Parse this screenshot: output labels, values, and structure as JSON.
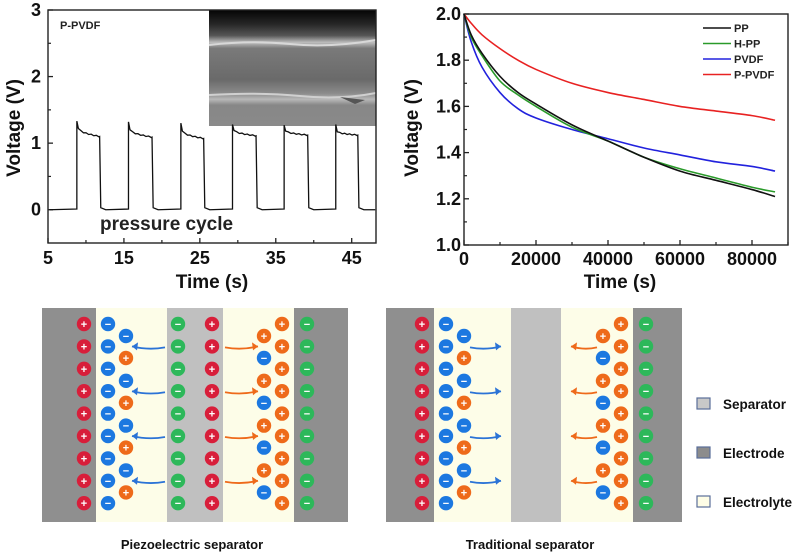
{
  "chart_data": [
    {
      "type": "line",
      "title": "",
      "annotation_label": "P-PVDF",
      "annotation_text": "pressure cycle",
      "inset": "SEM cross-section image",
      "xlabel": "Time (s)",
      "ylabel": "Voltage (V)",
      "xlim": [
        5,
        48.2
      ],
      "ylim": [
        -0.5,
        3
      ],
      "xticks": [
        5,
        15,
        25,
        35,
        45
      ],
      "yticks": [
        0,
        1,
        2,
        3
      ],
      "grid": false,
      "series": [
        {
          "name": "P-PVDF",
          "color": "#111111",
          "pulses": [
            {
              "rise": 8.8,
              "fall": 11.8,
              "peak": 1.33,
              "start": 1.22,
              "end": 1.1
            },
            {
              "rise": 15.6,
              "fall": 18.7,
              "peak": 1.32,
              "start": 1.2,
              "end": 1.09
            },
            {
              "rise": 22.5,
              "fall": 25.5,
              "peak": 1.3,
              "start": 1.18,
              "end": 1.07
            },
            {
              "rise": 29.3,
              "fall": 32.4,
              "peak": 1.28,
              "start": 1.19,
              "end": 1.11
            },
            {
              "rise": 36.1,
              "fall": 39.2,
              "peak": 1.27,
              "start": 1.18,
              "end": 1.12
            },
            {
              "rise": 42.9,
              "fall": 45.8,
              "peak": 1.28,
              "start": 1.17,
              "end": 1.12
            }
          ],
          "baseline": 0.0
        }
      ]
    },
    {
      "type": "line",
      "title": "",
      "xlabel": "Time (s)",
      "ylabel": "Voltage (V)",
      "xlim": [
        0,
        90000
      ],
      "ylim": [
        1.0,
        2.0
      ],
      "xticks": [
        0,
        20000,
        40000,
        60000,
        80000
      ],
      "yticks": [
        1.0,
        1.2,
        1.4,
        1.6,
        1.8,
        2.0
      ],
      "ytick_labels": [
        "1.0",
        "1.2",
        "1.4",
        "1.6",
        "1.8",
        "2.0"
      ],
      "grid": false,
      "legend_position": "top-right",
      "x": [
        0,
        2000,
        5000,
        10000,
        15000,
        20000,
        30000,
        40000,
        50000,
        60000,
        70000,
        80000,
        86400
      ],
      "series": [
        {
          "name": "PP",
          "color": "#111111",
          "values": [
            2.0,
            1.91,
            1.83,
            1.73,
            1.66,
            1.61,
            1.52,
            1.45,
            1.38,
            1.32,
            1.28,
            1.24,
            1.21
          ]
        },
        {
          "name": "H-PP",
          "color": "#2a9a2a",
          "values": [
            2.0,
            1.9,
            1.82,
            1.71,
            1.65,
            1.6,
            1.51,
            1.45,
            1.38,
            1.33,
            1.29,
            1.25,
            1.23
          ]
        },
        {
          "name": "PVDF",
          "color": "#2222dd",
          "values": [
            2.0,
            1.88,
            1.77,
            1.66,
            1.59,
            1.55,
            1.5,
            1.46,
            1.42,
            1.39,
            1.36,
            1.34,
            1.32
          ]
        },
        {
          "name": "P-PVDF",
          "color": "#e82222",
          "values": [
            2.0,
            1.96,
            1.91,
            1.85,
            1.8,
            1.76,
            1.7,
            1.66,
            1.63,
            1.6,
            1.58,
            1.56,
            1.54
          ]
        }
      ]
    }
  ],
  "diagrams": {
    "piezo": {
      "caption": "Piezoelectric separator"
    },
    "traditional": {
      "caption": "Traditional separator"
    },
    "legend": [
      {
        "label": "Separator",
        "color": "#c8c8c8"
      },
      {
        "label": "Electrode",
        "color": "#8c8c8c"
      },
      {
        "label": "Electrolyte",
        "color": "#fefde6"
      }
    ],
    "colors": {
      "electrode": "#8f8f8f",
      "separator": "#c0c0c0",
      "electrolyte": "#fdfde8",
      "cation_red": "#d81e3a",
      "anion_blue": "#1c78e0",
      "cation_orange": "#ee6a1a",
      "anion_green": "#2db85a",
      "arrow_blue": "#2b73d6",
      "arrow_orange": "#ee6a1a"
    },
    "signs": {
      "plus": "+",
      "minus": "−"
    }
  }
}
